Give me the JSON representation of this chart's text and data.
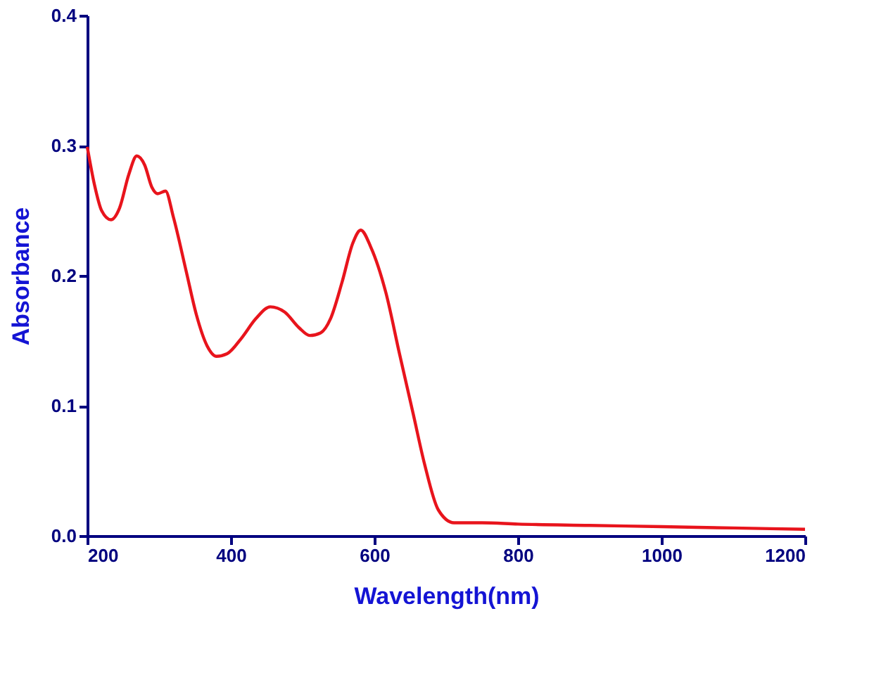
{
  "chart_data": {
    "type": "line",
    "xlabel": "Wavelength(nm)",
    "ylabel": "Absorbance",
    "xlim": [
      200,
      1200
    ],
    "ylim": [
      0,
      0.4
    ],
    "xticks": [
      200,
      400,
      600,
      800,
      1000,
      1200
    ],
    "yticks": [
      {
        "value": 0,
        "label": "0.0"
      },
      {
        "value": 0.1,
        "label": "0.1"
      },
      {
        "value": 0.2,
        "label": "0.2"
      },
      {
        "value": 0.3,
        "label": "0.3"
      },
      {
        "value": 0.4,
        "label": "0.4"
      }
    ],
    "grid": false,
    "marker": "none",
    "line_style": "solid",
    "series": [
      {
        "color": "#e8141c",
        "x": [
          200,
          210,
          220,
          233,
          245,
          258,
          269,
          280,
          290,
          298,
          309,
          320,
          338,
          352,
          367,
          380,
          395,
          415,
          435,
          455,
          475,
          495,
          510,
          525,
          539,
          555,
          570,
          581,
          595,
          616,
          635,
          654,
          670,
          689,
          711,
          750,
          800,
          900,
          1000,
          1100,
          1200
        ],
        "values": [
          0.299,
          0.27,
          0.25,
          0.243,
          0.252,
          0.278,
          0.292,
          0.285,
          0.268,
          0.263,
          0.265,
          0.245,
          0.203,
          0.17,
          0.146,
          0.138,
          0.14,
          0.152,
          0.167,
          0.176,
          0.172,
          0.16,
          0.154,
          0.156,
          0.167,
          0.195,
          0.225,
          0.235,
          0.222,
          0.187,
          0.14,
          0.094,
          0.055,
          0.02,
          0.01,
          0.01,
          0.009,
          0.008,
          0.007,
          0.006,
          0.005
        ]
      }
    ]
  }
}
